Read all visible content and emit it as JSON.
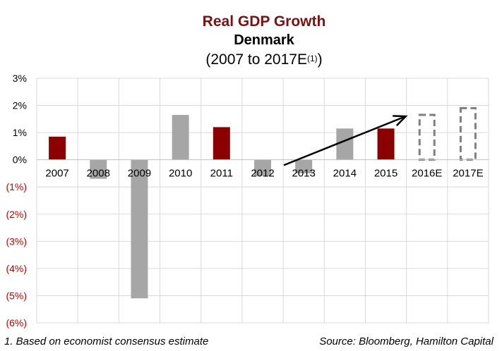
{
  "chart_data": {
    "type": "bar",
    "title": "Real GDP Growth",
    "subtitle": "Denmark",
    "range_label": "(2007 to 2017E",
    "range_sup": "(1)",
    "range_close": ")",
    "categories": [
      "2007",
      "2008",
      "2009",
      "2010",
      "2011",
      "2012",
      "2013",
      "2014",
      "2015",
      "2016E",
      "2017E"
    ],
    "values": [
      0.85,
      -0.7,
      -5.1,
      1.65,
      1.2,
      -0.6,
      -0.5,
      1.15,
      1.15,
      1.65,
      1.9
    ],
    "bar_styles": [
      "highlight",
      "normal",
      "normal",
      "normal",
      "highlight",
      "normal",
      "normal",
      "normal",
      "highlight",
      "estimate",
      "estimate"
    ],
    "ylim": [
      -6,
      3
    ],
    "yticks": [
      3,
      2,
      1,
      0,
      -1,
      -2,
      -3,
      -4,
      -5,
      -6
    ],
    "ytick_labels": [
      "3%",
      "2%",
      "1%",
      "0%",
      "(1%)",
      "(2%)",
      "(3%)",
      "(4%)",
      "(5%)",
      "(6%)"
    ],
    "grid": true,
    "trend_arrow": {
      "from": {
        "category": "2012",
        "value": -0.2
      },
      "to": {
        "category": "2016E",
        "value": 1.6
      }
    },
    "colors": {
      "highlight": "#8b0000",
      "normal": "#a6a6a6",
      "estimate": "#7f7f7f",
      "negative_label": "#c00000",
      "title": "#7b1113",
      "grid": "#d9d9d9"
    }
  },
  "footnote": "1. Based on economist consensus estimate",
  "source": "Source: Bloomberg, Hamilton Capital"
}
